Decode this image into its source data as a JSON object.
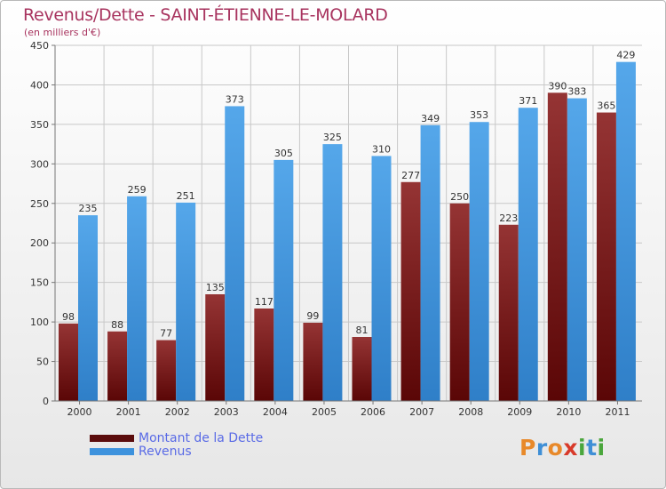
{
  "header": {
    "title": "Revenus/Dette - SAINT-ÉTIENNE-LE-MOLARD",
    "subtitle": "(en milliers d'€)"
  },
  "chart_data": {
    "type": "bar",
    "title": "Revenus/Dette - SAINT-ÉTIENNE-LE-MOLARD",
    "subtitle": "(en milliers d'€)",
    "categories": [
      "2000",
      "2001",
      "2002",
      "2003",
      "2004",
      "2005",
      "2006",
      "2007",
      "2008",
      "2009",
      "2010",
      "2011"
    ],
    "series": [
      {
        "name": "Montant de la Dette",
        "color": "#7a1414",
        "values": [
          98,
          88,
          77,
          135,
          117,
          99,
          81,
          277,
          250,
          223,
          390,
          365
        ]
      },
      {
        "name": "Revenus",
        "color": "#3d92dd",
        "values": [
          235,
          259,
          251,
          373,
          305,
          325,
          310,
          349,
          353,
          371,
          383,
          429
        ]
      }
    ],
    "ylim": [
      0,
      450
    ],
    "yticks": [
      0,
      50,
      100,
      150,
      200,
      250,
      300,
      350,
      400,
      450
    ],
    "grid": true,
    "legend_position": "bottom-left"
  },
  "legend": [
    {
      "label": "Montant de la Dette",
      "color": "#5a0c0c"
    },
    {
      "label": "Revenus",
      "color": "#3d92dd"
    }
  ],
  "logo": {
    "text": "Proxiti",
    "letters": [
      {
        "ch": "P",
        "color": "#e8892a"
      },
      {
        "ch": "r",
        "color": "#3f8fd6"
      },
      {
        "ch": "o",
        "color": "#e8892a"
      },
      {
        "ch": "x",
        "color": "#d83a2a"
      },
      {
        "ch": "i",
        "color": "#4aa63c"
      },
      {
        "ch": "t",
        "color": "#3f8fd6"
      },
      {
        "ch": "i",
        "color": "#4aa63c"
      }
    ]
  }
}
